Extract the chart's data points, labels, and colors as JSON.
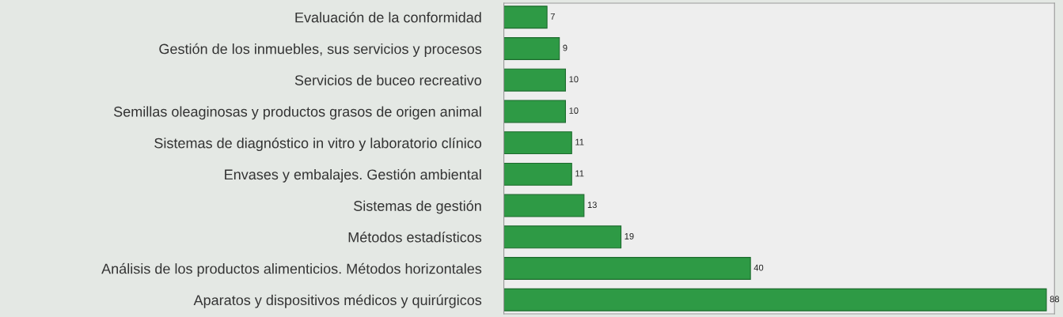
{
  "chart_data": {
    "type": "bar",
    "orientation": "horizontal",
    "data_labels": true,
    "grid": false,
    "categories": [
      "Evaluación de la conformidad",
      "Gestión de los inmuebles, sus servicios y procesos",
      "Servicios de buceo recreativo",
      "Semillas oleaginosas y productos grasos de origen animal",
      "Sistemas de diagnóstico in vitro y laboratorio clínico",
      "Envases y embalajes. Gestión ambiental",
      "Sistemas de gestión",
      "Métodos estadísticos",
      "Análisis de los productos alimenticios. Métodos horizontales",
      "Aparatos y dispositivos médicos y quirúrgicos"
    ],
    "values": [
      7,
      9,
      10,
      10,
      11,
      11,
      13,
      19,
      40,
      88
    ],
    "color": "#2e9a45",
    "tick_labels": "y"
  }
}
